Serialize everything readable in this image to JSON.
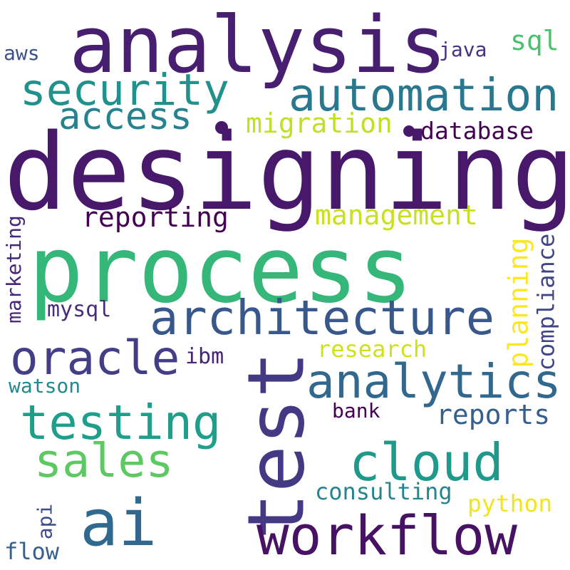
{
  "words": [
    {
      "key": "designing",
      "text": "designing",
      "color": "#48186a"
    },
    {
      "key": "process",
      "text": "process",
      "color": "#35b779"
    },
    {
      "key": "analysis",
      "text": "analysis",
      "color": "#481f70"
    },
    {
      "key": "test",
      "text": "test",
      "color": "#443983"
    },
    {
      "key": "workflow",
      "text": "workflow",
      "color": "#471164"
    },
    {
      "key": "ai",
      "text": "ai",
      "color": "#31688e"
    },
    {
      "key": "architecture",
      "text": "architecture",
      "color": "#38588c"
    },
    {
      "key": "automation",
      "text": "automation",
      "color": "#2a788e"
    },
    {
      "key": "security",
      "text": "security",
      "color": "#21918c"
    },
    {
      "key": "analytics",
      "text": "analytics",
      "color": "#31688e"
    },
    {
      "key": "oracle",
      "text": "oracle",
      "color": "#433e85"
    },
    {
      "key": "testing",
      "text": "testing",
      "color": "#1f9e89"
    },
    {
      "key": "cloud",
      "text": "cloud",
      "color": "#1f9a8a"
    },
    {
      "key": "sales",
      "text": "sales",
      "color": "#5ec962"
    },
    {
      "key": "access",
      "text": "access",
      "color": "#26828e"
    },
    {
      "key": "management",
      "text": "management",
      "color": "#c8e020"
    },
    {
      "key": "migration",
      "text": "migration",
      "color": "#c2df23"
    },
    {
      "key": "reporting",
      "text": "reporting",
      "color": "#440154"
    },
    {
      "key": "database",
      "text": "database",
      "color": "#440154"
    },
    {
      "key": "reports",
      "text": "reports",
      "color": "#355f8d"
    },
    {
      "key": "planning",
      "text": "planning",
      "color": "#fde725"
    },
    {
      "key": "compliance",
      "text": "compliance",
      "color": "#414487"
    },
    {
      "key": "consulting",
      "text": "consulting",
      "color": "#25848e"
    },
    {
      "key": "research",
      "text": "research",
      "color": "#d0e11c"
    },
    {
      "key": "python",
      "text": "python",
      "color": "#f1e51d"
    },
    {
      "key": "sql",
      "text": "sql",
      "color": "#4ac16d"
    },
    {
      "key": "java",
      "text": "java",
      "color": "#46337e"
    },
    {
      "key": "aws",
      "text": "aws",
      "color": "#3b528b"
    },
    {
      "key": "marketing",
      "text": "marketing",
      "color": "#482677"
    },
    {
      "key": "mysql",
      "text": "mysql",
      "color": "#472d7b"
    },
    {
      "key": "ibm",
      "text": "ibm",
      "color": "#482475"
    },
    {
      "key": "watson",
      "text": "watson",
      "color": "#23898e"
    },
    {
      "key": "bank",
      "text": "bank",
      "color": "#440154"
    },
    {
      "key": "api",
      "text": "api",
      "color": "#3e4a89"
    },
    {
      "key": "flow",
      "text": "flow",
      "color": "#355f8d"
    }
  ]
}
